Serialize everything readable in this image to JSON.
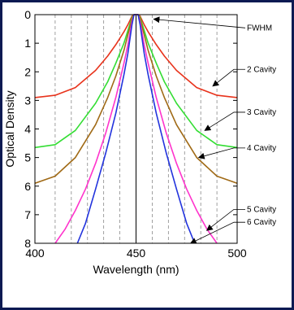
{
  "chart_data": {
    "type": "line",
    "title": "",
    "xlabel": "Wavelength (nm)",
    "ylabel": "Optical Density",
    "xlim": [
      400,
      500
    ],
    "ylim": [
      0,
      8
    ],
    "y_inverted": true,
    "x_ticks": [
      400,
      450,
      500
    ],
    "y_ticks": [
      0,
      1,
      2,
      3,
      4,
      5,
      6,
      7,
      8
    ],
    "vertical_grid_x": [
      410,
      418,
      426,
      434,
      442,
      458,
      466,
      474,
      482,
      490
    ],
    "center_line_x": 450,
    "grid": true,
    "series": [
      {
        "name": "2 Cavity",
        "color": "#e8331c",
        "x": [
          400,
          410,
          420,
          430,
          436,
          440,
          444,
          446,
          448,
          449,
          451,
          452,
          454,
          456,
          460,
          464,
          470,
          480,
          490,
          500
        ],
        "y": [
          2.9,
          2.82,
          2.55,
          1.95,
          1.45,
          1.05,
          0.6,
          0.35,
          0.05,
          0,
          0,
          0.05,
          0.35,
          0.6,
          1.05,
          1.45,
          1.95,
          2.55,
          2.82,
          2.9
        ]
      },
      {
        "name": "3 Cavity",
        "color": "#33dd33",
        "x": [
          400,
          410,
          420,
          430,
          436,
          440,
          444,
          446,
          448,
          449,
          451,
          452,
          454,
          456,
          460,
          464,
          470,
          480,
          490,
          500
        ],
        "y": [
          4.65,
          4.55,
          4.05,
          3.1,
          2.35,
          1.7,
          1.0,
          0.55,
          0.1,
          0,
          0,
          0.1,
          0.55,
          1.0,
          1.7,
          2.35,
          3.1,
          4.05,
          4.55,
          4.65
        ]
      },
      {
        "name": "4 Cavity",
        "color": "#a06a16",
        "x": [
          400,
          410,
          420,
          430,
          436,
          440,
          444,
          446,
          448,
          449,
          451,
          452,
          454,
          456,
          460,
          464,
          470,
          480,
          490,
          500
        ],
        "y": [
          5.9,
          5.65,
          5.0,
          3.85,
          2.9,
          2.15,
          1.25,
          0.7,
          0.15,
          0,
          0,
          0.15,
          0.7,
          1.25,
          2.15,
          2.9,
          3.85,
          5.0,
          5.65,
          5.9
        ]
      },
      {
        "name": "5 Cavity",
        "color": "#ff33cc",
        "x": [
          410,
          415,
          420,
          425,
          430,
          435,
          440,
          444,
          446,
          448,
          449,
          451,
          452,
          454,
          456,
          460,
          465,
          470,
          475,
          480,
          485,
          490
        ],
        "y": [
          8,
          7.5,
          6.85,
          6.1,
          5.2,
          4.15,
          2.9,
          1.7,
          1.05,
          0.25,
          0,
          0,
          0.25,
          1.05,
          1.7,
          2.9,
          4.15,
          5.2,
          6.1,
          6.85,
          7.5,
          8
        ]
      },
      {
        "name": "6 Cavity",
        "color": "#2233dd",
        "x": [
          421,
          425,
          430,
          435,
          440,
          444,
          446,
          448,
          449,
          451,
          452,
          454,
          456,
          460,
          465,
          470,
          475,
          479
        ],
        "y": [
          8,
          7.3,
          6.1,
          4.85,
          3.45,
          2.1,
          1.35,
          0.35,
          0,
          0,
          0.35,
          1.35,
          2.1,
          3.45,
          4.85,
          6.1,
          7.3,
          8
        ]
      }
    ],
    "annotations": [
      {
        "text": "FWHM",
        "x": 458,
        "y": 0.1
      },
      {
        "text": "2 Cavity",
        "x": 488,
        "y": 2.5
      },
      {
        "text": "3 Cavity",
        "x": 484,
        "y": 4.05
      },
      {
        "text": "4 Cavity",
        "x": 481,
        "y": 5.0
      },
      {
        "text": "5 Cavity",
        "x": 485,
        "y": 7.55
      },
      {
        "text": "6 Cavity",
        "x": 477,
        "y": 8.0
      }
    ]
  }
}
